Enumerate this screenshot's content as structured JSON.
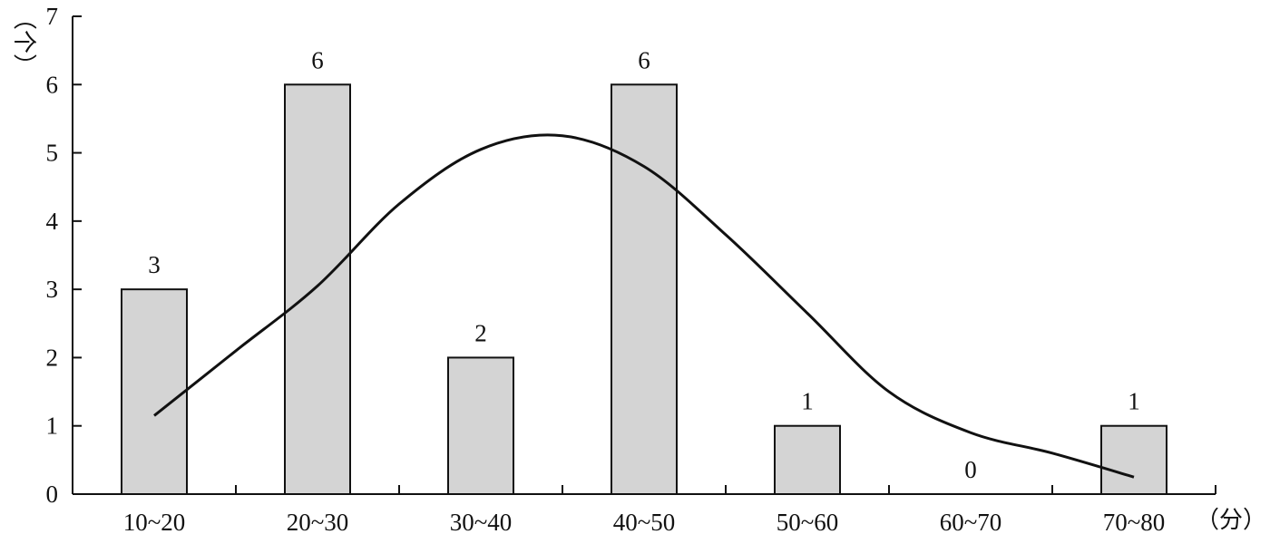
{
  "chart_data": {
    "type": "bar",
    "categories": [
      "10~20",
      "20~30",
      "30~40",
      "40~50",
      "50~60",
      "60~70",
      "70~80"
    ],
    "values": [
      3,
      6,
      2,
      6,
      1,
      0,
      1
    ],
    "data_labels": [
      "3",
      "6",
      "2",
      "6",
      "1",
      "0",
      "1"
    ],
    "ylim": [
      0,
      7
    ],
    "yticks": [
      0,
      1,
      2,
      3,
      4,
      5,
      6,
      7
    ],
    "ytick_labels": [
      "0",
      "1",
      "2",
      "3",
      "4",
      "5",
      "6",
      "7"
    ],
    "ylabel_unit": "（个）",
    "xlabel_unit": "（分）",
    "grid": false,
    "legend": "none",
    "bar_color": "#d4d4d4",
    "bar_edge_color": "#111111",
    "curve_color": "#111111",
    "curve": {
      "description_label": "",
      "x": [
        15,
        20,
        25,
        30,
        35,
        40,
        45,
        50,
        55,
        60,
        65,
        70,
        75
      ],
      "y": [
        1.15,
        2.1,
        3.05,
        4.25,
        5.05,
        5.25,
        4.8,
        3.8,
        2.65,
        1.5,
        0.9,
        0.6,
        0.25
      ]
    }
  }
}
